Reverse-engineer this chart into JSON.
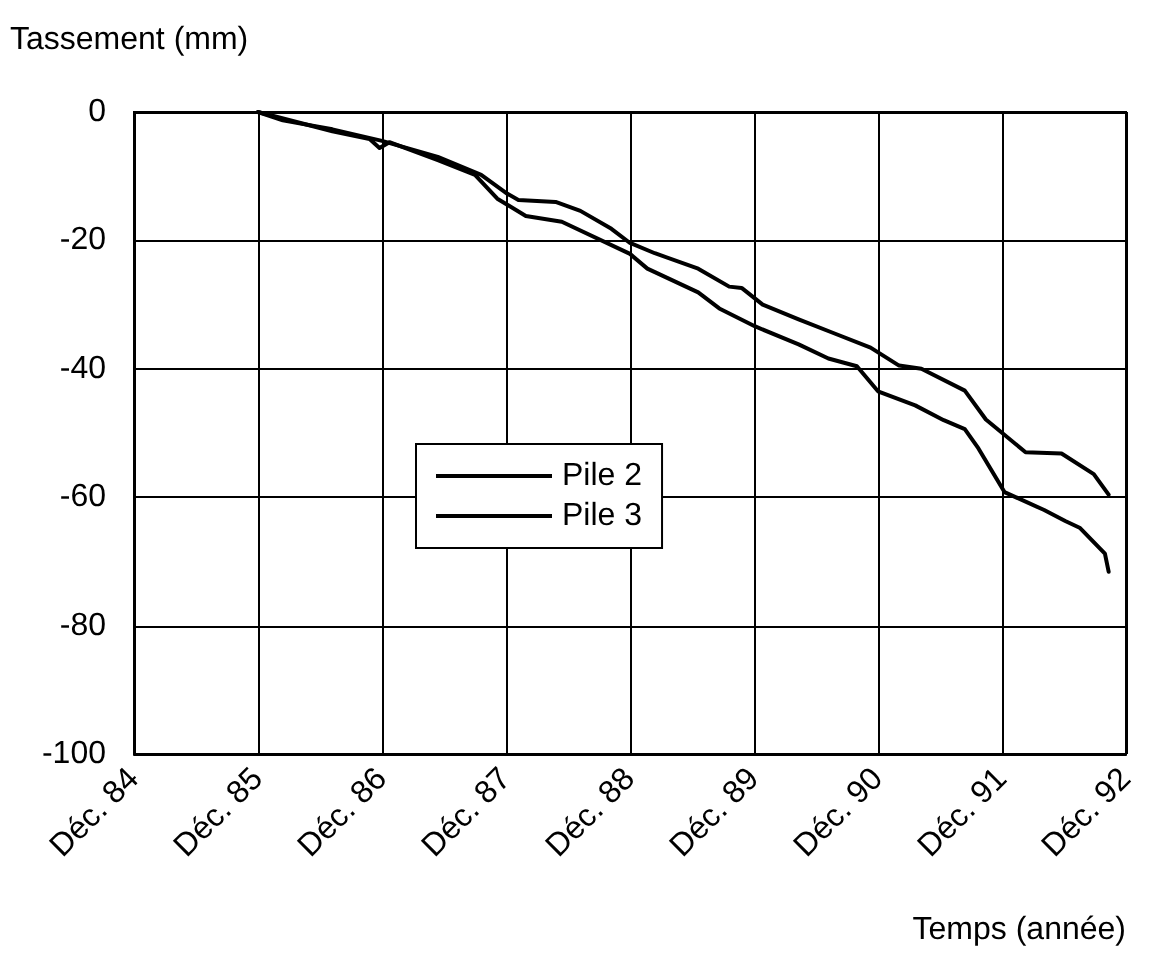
{
  "chart_data": {
    "type": "line",
    "xlabel": "Temps (année)",
    "ylabel": "Tassement (mm)",
    "xlim": [
      84,
      92
    ],
    "ylim": [
      -100,
      0
    ],
    "xticks": [
      {
        "value": 84,
        "label": "Déc. 84"
      },
      {
        "value": 85,
        "label": "Déc. 85"
      },
      {
        "value": 86,
        "label": "Déc. 86"
      },
      {
        "value": 87,
        "label": "Déc. 87"
      },
      {
        "value": 88,
        "label": "Déc. 88"
      },
      {
        "value": 89,
        "label": "Déc. 89"
      },
      {
        "value": 90,
        "label": "Déc. 90"
      },
      {
        "value": 91,
        "label": "Déc. 91"
      },
      {
        "value": 92,
        "label": "Déc. 92"
      }
    ],
    "yticks": [
      0,
      -20,
      -40,
      -60,
      -80,
      -100
    ],
    "grid": true,
    "legend": "center",
    "marker": "none",
    "line_style": "solid",
    "series": [
      {
        "name": "Pile 2",
        "color": "#000000",
        "x": [
          85.0,
          85.2,
          85.6,
          86.0,
          86.45,
          86.8,
          87.0,
          87.1,
          87.4,
          87.6,
          87.85,
          88.0,
          88.2,
          88.55,
          88.8,
          88.9,
          89.07,
          89.36,
          89.65,
          89.94,
          90.17,
          90.35,
          90.7,
          90.87,
          91.19,
          91.48,
          91.74,
          91.86
        ],
        "values": [
          0,
          -1.3,
          -2.7,
          -4.5,
          -7,
          -9.8,
          -12.6,
          -13.7,
          -14,
          -15.4,
          -18.2,
          -20.4,
          -22,
          -24.4,
          -27.2,
          -27.4,
          -30,
          -32.3,
          -34.5,
          -36.7,
          -39.5,
          -40,
          -43.4,
          -47.9,
          -53,
          -53.2,
          -56.4,
          -59.6
        ]
      },
      {
        "name": "Pile 3",
        "color": "#000000",
        "x": [
          85.0,
          85.6,
          85.9,
          85.98,
          86.06,
          86.45,
          86.75,
          86.93,
          87.16,
          87.45,
          88.0,
          88.14,
          88.55,
          88.72,
          89.01,
          89.36,
          89.6,
          89.83,
          90.0,
          90.3,
          90.53,
          90.7,
          90.81,
          91.02,
          91.34,
          91.51,
          91.63,
          91.83,
          91.86
        ],
        "values": [
          0,
          -3,
          -4.2,
          -5.6,
          -4.7,
          -7.5,
          -9.8,
          -13.5,
          -16.2,
          -17.1,
          -22.1,
          -24.4,
          -28.1,
          -30.6,
          -33.4,
          -36.2,
          -38.4,
          -39.6,
          -43.5,
          -45.7,
          -48,
          -49.4,
          -52.4,
          -59.2,
          -62,
          -63.7,
          -64.8,
          -68.8,
          -71.6
        ]
      }
    ]
  }
}
